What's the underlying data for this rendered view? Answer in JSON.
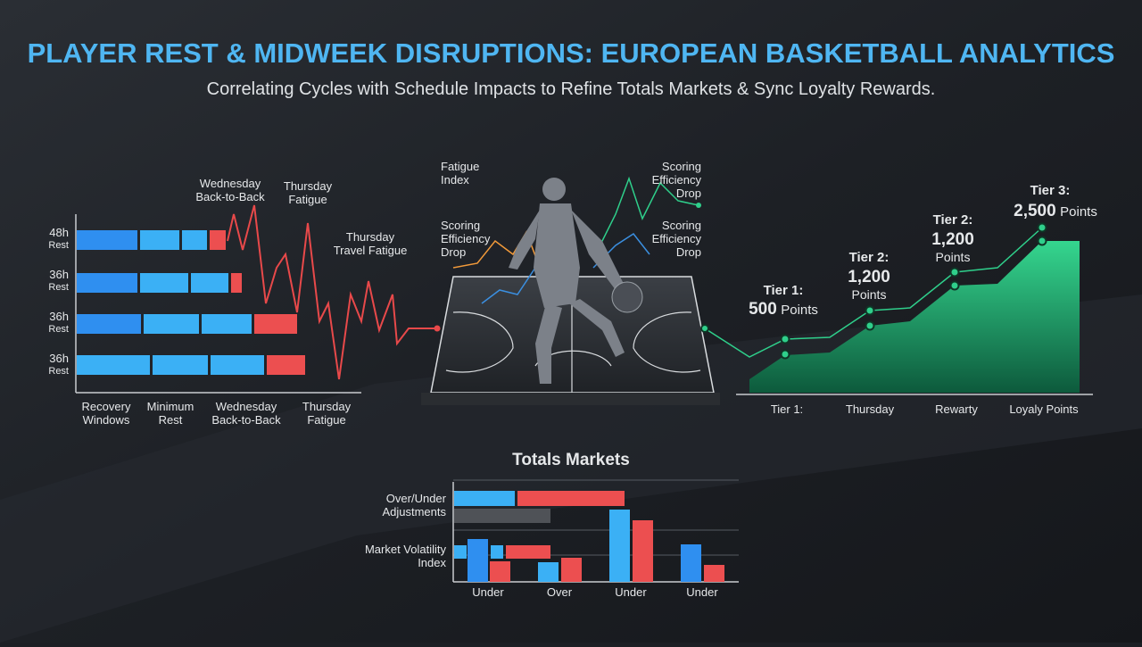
{
  "header": {
    "title": "PLAYER REST & MIDWEEK DISRUPTIONS: EUROPEAN BASKETBALL ANALYTICS",
    "subtitle": "Correlating Cycles with Schedule Impacts to Refine Totals Markets & Sync Loyalty Rewards."
  },
  "rest_chart": {
    "rows": [
      {
        "hours": "48h",
        "label": "Rest"
      },
      {
        "hours": "36h",
        "label": "Rest"
      },
      {
        "hours": "36h",
        "label": "Rest"
      },
      {
        "hours": "36h",
        "label": "Rest"
      }
    ],
    "annotations": [
      [
        "Wednesday",
        "Back-to-Back"
      ],
      [
        "Thursday",
        "Fatigue"
      ],
      [
        "Thursday",
        "Travel Fatigue"
      ]
    ],
    "x_labels": [
      [
        "Recovery",
        "Windows"
      ],
      [
        "Minimum",
        "Rest"
      ],
      [
        "Wednesday",
        "Back-to-Back"
      ],
      [
        "Thursday",
        "Fatigue"
      ]
    ]
  },
  "player_panel": {
    "left_labels": [
      [
        "Fatigue",
        "Index"
      ],
      [
        "Scoring",
        "Efficiency",
        "Drop"
      ]
    ],
    "right_labels": [
      [
        "Scoring",
        "Efficiency",
        "Drop"
      ],
      [
        "Scoring",
        "Efficiency",
        "Drop"
      ]
    ]
  },
  "tier_chart": {
    "tiers": [
      {
        "name": "Tier 1:",
        "points": "500",
        "unit": "Points"
      },
      {
        "name": "Tier 2:",
        "points": "1,200",
        "unit": "Points"
      },
      {
        "name": "Tier 2:",
        "points": "1,200",
        "unit": "Points"
      },
      {
        "name": "Tier 3:",
        "points": "2,500",
        "unit": "Points"
      }
    ],
    "x_labels": [
      "Tier 1:",
      "Thursday",
      "Rewarty",
      "Loyaly Points"
    ]
  },
  "totals_chart": {
    "title": "Totals Markets",
    "row_labels": [
      [
        "Over/Under",
        "Adjustments"
      ],
      [
        "Market Volatility",
        "Index"
      ]
    ],
    "x_labels": [
      "Under",
      "Over",
      "Under",
      "Under"
    ]
  }
}
